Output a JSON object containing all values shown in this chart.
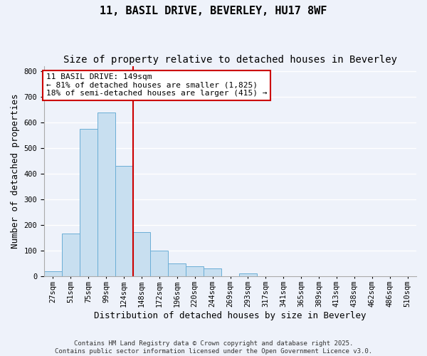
{
  "title_line1": "11, BASIL DRIVE, BEVERLEY, HU17 8WF",
  "title_line2": "Size of property relative to detached houses in Beverley",
  "xlabel": "Distribution of detached houses by size in Beverley",
  "ylabel": "Number of detached properties",
  "bar_color": "#c8dff0",
  "bar_edge_color": "#6baed6",
  "background_color": "#eef2fa",
  "grid_color": "#ffffff",
  "bin_labels": [
    "27sqm",
    "51sqm",
    "75sqm",
    "99sqm",
    "124sqm",
    "148sqm",
    "172sqm",
    "196sqm",
    "220sqm",
    "244sqm",
    "269sqm",
    "293sqm",
    "317sqm",
    "341sqm",
    "365sqm",
    "389sqm",
    "413sqm",
    "438sqm",
    "462sqm",
    "486sqm",
    "510sqm"
  ],
  "values": [
    20,
    168,
    575,
    640,
    430,
    172,
    102,
    50,
    40,
    32,
    0,
    12,
    0,
    0,
    0,
    0,
    0,
    0,
    0,
    2,
    0
  ],
  "ylim": [
    0,
    820
  ],
  "yticks": [
    0,
    100,
    200,
    300,
    400,
    500,
    600,
    700,
    800
  ],
  "vline_index": 5,
  "vline_color": "#cc0000",
  "annotation_title": "11 BASIL DRIVE: 149sqm",
  "annotation_line1": "← 81% of detached houses are smaller (1,825)",
  "annotation_line2": "18% of semi-detached houses are larger (415) →",
  "annotation_box_color": "#ffffff",
  "annotation_box_edge": "#cc0000",
  "footer_line1": "Contains HM Land Registry data © Crown copyright and database right 2025.",
  "footer_line2": "Contains public sector information licensed under the Open Government Licence v3.0.",
  "title_fontsize": 11,
  "subtitle_fontsize": 10,
  "axis_label_fontsize": 9,
  "tick_fontsize": 7.5,
  "annotation_fontsize": 8,
  "footer_fontsize": 6.5
}
